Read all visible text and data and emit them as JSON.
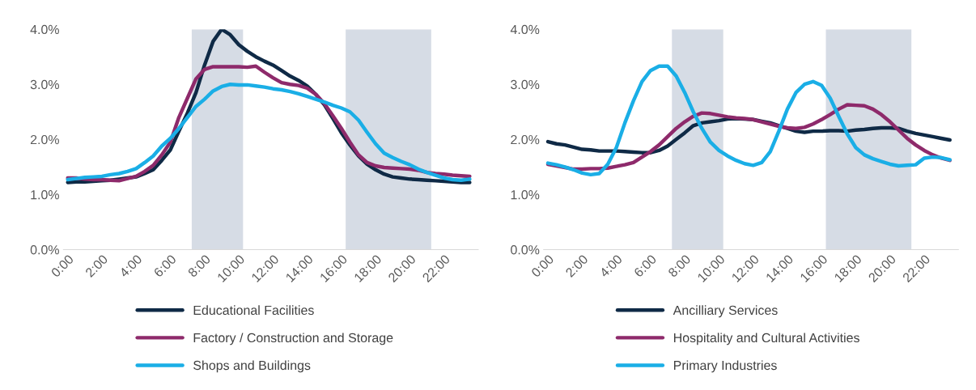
{
  "chart_data": [
    {
      "type": "line",
      "x": [
        0,
        0.5,
        1,
        1.5,
        2,
        2.5,
        3,
        3.5,
        4,
        4.5,
        5,
        5.5,
        6,
        6.5,
        7,
        7.5,
        8,
        8.5,
        9,
        9.5,
        10,
        10.5,
        11,
        11.5,
        12,
        12.5,
        13,
        13.5,
        14,
        14.5,
        15,
        15.5,
        16,
        16.5,
        17,
        17.5,
        18,
        18.5,
        19,
        19.5,
        20,
        20.5,
        21,
        21.5,
        22,
        22.5,
        23,
        23.5
      ],
      "series": [
        {
          "name": "Educational Facilities",
          "color": "#0f2a46",
          "values": [
            1.22,
            1.23,
            1.23,
            1.24,
            1.25,
            1.26,
            1.28,
            1.3,
            1.32,
            1.38,
            1.45,
            1.62,
            1.81,
            2.15,
            2.48,
            2.85,
            3.35,
            3.78,
            4.0,
            3.9,
            3.72,
            3.6,
            3.5,
            3.42,
            3.35,
            3.25,
            3.15,
            3.07,
            2.97,
            2.82,
            2.63,
            2.38,
            2.12,
            1.9,
            1.7,
            1.55,
            1.45,
            1.37,
            1.32,
            1.3,
            1.28,
            1.27,
            1.26,
            1.25,
            1.24,
            1.23,
            1.22,
            1.22
          ]
        },
        {
          "name": "Factory / Construction and Storage",
          "color": "#8e2a6b",
          "values": [
            1.3,
            1.3,
            1.28,
            1.27,
            1.27,
            1.26,
            1.25,
            1.29,
            1.33,
            1.42,
            1.53,
            1.72,
            1.95,
            2.4,
            2.75,
            3.1,
            3.27,
            3.32,
            3.32,
            3.32,
            3.32,
            3.31,
            3.33,
            3.22,
            3.12,
            3.03,
            3.0,
            2.98,
            2.93,
            2.82,
            2.65,
            2.43,
            2.2,
            1.95,
            1.72,
            1.58,
            1.52,
            1.49,
            1.48,
            1.47,
            1.46,
            1.44,
            1.4,
            1.38,
            1.37,
            1.35,
            1.34,
            1.33
          ]
        },
        {
          "name": "Shops and Buildings",
          "color": "#1aaee6",
          "values": [
            1.27,
            1.29,
            1.31,
            1.32,
            1.33,
            1.36,
            1.38,
            1.42,
            1.47,
            1.58,
            1.7,
            1.88,
            2.02,
            2.2,
            2.4,
            2.6,
            2.73,
            2.88,
            2.96,
            3.0,
            2.99,
            2.99,
            2.97,
            2.95,
            2.92,
            2.9,
            2.87,
            2.83,
            2.78,
            2.73,
            2.68,
            2.62,
            2.57,
            2.5,
            2.35,
            2.13,
            1.92,
            1.75,
            1.67,
            1.6,
            1.54,
            1.46,
            1.4,
            1.35,
            1.3,
            1.27,
            1.26,
            1.28
          ]
        }
      ],
      "xlim": [
        -0.25,
        24
      ],
      "xticks": [
        {
          "value": 0,
          "label": "0:00"
        },
        {
          "value": 2,
          "label": "2:00"
        },
        {
          "value": 4,
          "label": "4:00"
        },
        {
          "value": 6,
          "label": "6:00"
        },
        {
          "value": 8,
          "label": "8:00"
        },
        {
          "value": 10,
          "label": "10:00"
        },
        {
          "value": 12,
          "label": "12:00"
        },
        {
          "value": 14,
          "label": "14:00"
        },
        {
          "value": 16,
          "label": "16:00"
        },
        {
          "value": 18,
          "label": "18:00"
        },
        {
          "value": 20,
          "label": "20:00"
        },
        {
          "value": 22,
          "label": "22:00"
        }
      ],
      "ylim": [
        0,
        4
      ],
      "yticks": [
        {
          "value": 0,
          "label": "0.0%"
        },
        {
          "value": 1,
          "label": "1.0%"
        },
        {
          "value": 2,
          "label": "2.0%"
        },
        {
          "value": 3,
          "label": "3.0%"
        },
        {
          "value": 4,
          "label": "4.0%"
        }
      ],
      "bands": [
        {
          "axis": "x",
          "from": 7.25,
          "to": 10.25,
          "color": "#d6dce5"
        },
        {
          "axis": "x",
          "from": 16.25,
          "to": 21.25,
          "color": "#d6dce5"
        }
      ],
      "legend": "bottom",
      "grid": false
    },
    {
      "type": "line",
      "x": [
        0,
        0.5,
        1,
        1.5,
        2,
        2.5,
        3,
        3.5,
        4,
        4.5,
        5,
        5.5,
        6,
        6.5,
        7,
        7.5,
        8,
        8.5,
        9,
        9.5,
        10,
        10.5,
        11,
        11.5,
        12,
        12.5,
        13,
        13.5,
        14,
        14.5,
        15,
        15.5,
        16,
        16.5,
        17,
        17.5,
        18,
        18.5,
        19,
        19.5,
        20,
        20.5,
        21,
        21.5,
        22,
        22.5,
        23,
        23.5
      ],
      "series": [
        {
          "name": "Ancilliary Services",
          "color": "#0f2a46",
          "values": [
            1.96,
            1.92,
            1.9,
            1.86,
            1.82,
            1.81,
            1.79,
            1.79,
            1.79,
            1.78,
            1.77,
            1.76,
            1.76,
            1.8,
            1.88,
            2.0,
            2.12,
            2.25,
            2.3,
            2.32,
            2.34,
            2.37,
            2.38,
            2.37,
            2.36,
            2.33,
            2.3,
            2.25,
            2.2,
            2.15,
            2.13,
            2.15,
            2.15,
            2.16,
            2.16,
            2.15,
            2.17,
            2.18,
            2.2,
            2.21,
            2.21,
            2.2,
            2.15,
            2.11,
            2.08,
            2.05,
            2.02,
            1.99
          ]
        },
        {
          "name": "Hospitality and Cultural Activities",
          "color": "#8e2a6b",
          "values": [
            1.55,
            1.52,
            1.49,
            1.46,
            1.46,
            1.47,
            1.47,
            1.48,
            1.51,
            1.54,
            1.58,
            1.68,
            1.78,
            1.9,
            2.05,
            2.2,
            2.32,
            2.42,
            2.48,
            2.47,
            2.44,
            2.41,
            2.39,
            2.38,
            2.36,
            2.32,
            2.28,
            2.24,
            2.21,
            2.2,
            2.22,
            2.28,
            2.36,
            2.45,
            2.55,
            2.63,
            2.62,
            2.61,
            2.55,
            2.45,
            2.32,
            2.17,
            2.02,
            1.9,
            1.8,
            1.72,
            1.66,
            1.62
          ]
        },
        {
          "name": "Primary Industries",
          "color": "#1aaee6",
          "values": [
            1.57,
            1.54,
            1.5,
            1.45,
            1.39,
            1.36,
            1.38,
            1.55,
            1.85,
            2.3,
            2.7,
            3.05,
            3.25,
            3.33,
            3.33,
            3.15,
            2.85,
            2.5,
            2.2,
            1.95,
            1.8,
            1.7,
            1.62,
            1.56,
            1.53,
            1.58,
            1.78,
            2.15,
            2.55,
            2.85,
            3.0,
            3.05,
            2.98,
            2.75,
            2.42,
            2.1,
            1.85,
            1.72,
            1.65,
            1.6,
            1.55,
            1.52,
            1.53,
            1.54,
            1.66,
            1.68,
            1.67,
            1.63
          ]
        }
      ],
      "xlim": [
        -0.25,
        24
      ],
      "xticks": [
        {
          "value": 0,
          "label": "0:00"
        },
        {
          "value": 2,
          "label": "2:00"
        },
        {
          "value": 4,
          "label": "4:00"
        },
        {
          "value": 6,
          "label": "6:00"
        },
        {
          "value": 8,
          "label": "8:00"
        },
        {
          "value": 10,
          "label": "10:00"
        },
        {
          "value": 12,
          "label": "12:00"
        },
        {
          "value": 14,
          "label": "14:00"
        },
        {
          "value": 16,
          "label": "16:00"
        },
        {
          "value": 18,
          "label": "18:00"
        },
        {
          "value": 20,
          "label": "20:00"
        },
        {
          "value": 22,
          "label": "22:00"
        }
      ],
      "ylim": [
        0,
        4
      ],
      "yticks": [
        {
          "value": 0,
          "label": "0.0%"
        },
        {
          "value": 1,
          "label": "1.0%"
        },
        {
          "value": 2,
          "label": "2.0%"
        },
        {
          "value": 3,
          "label": "3.0%"
        },
        {
          "value": 4,
          "label": "4.0%"
        }
      ],
      "bands": [
        {
          "axis": "x",
          "from": 7.25,
          "to": 10.25,
          "color": "#d6dce5"
        },
        {
          "axis": "x",
          "from": 16.25,
          "to": 21.25,
          "color": "#d6dce5"
        }
      ],
      "legend": "bottom",
      "grid": false
    }
  ]
}
